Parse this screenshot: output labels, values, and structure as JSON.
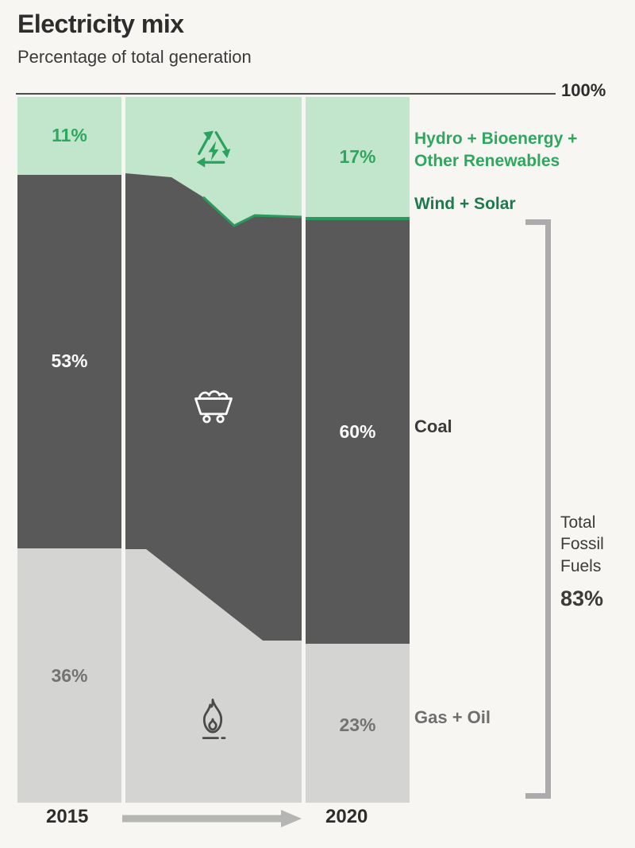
{
  "header": {
    "title": "Electricity mix",
    "subtitle": "Percentage of total generation"
  },
  "axis": {
    "top_label": "100%"
  },
  "values": {
    "y2015": {
      "renewables": "11%",
      "coal": "53%",
      "gas_oil": "36%"
    },
    "y2020": {
      "renewables": "17%",
      "coal": "60%",
      "gas_oil": "23%"
    }
  },
  "labels": {
    "renewables": "Hydro + Bioenergy + Other Renewables",
    "wind_solar": "Wind + Solar",
    "coal": "Coal",
    "gas_oil": "Gas + Oil",
    "total_fossil": "Total Fossil Fuels",
    "total_fossil_value": "83%"
  },
  "icons": {
    "renewables": "recycle-energy-icon",
    "coal": "coal-cart-icon",
    "gas_oil": "flame-icon"
  },
  "colors": {
    "background": "#f7f6f3",
    "renewables_fill": "#c2e6cc",
    "renewables_text": "#2fa75f",
    "wind_solar": "#2c9a5f",
    "coal_fill": "#59595a",
    "gas_fill": "#d4d4d2",
    "text_dark": "#2d2d2d",
    "text_gray": "#6e6e6e",
    "bracket": "#ababab"
  },
  "chart_data": {
    "type": "bar",
    "subtype": "stacked-flow-comparison",
    "title": "Electricity mix",
    "subtitle": "Percentage of total generation",
    "categories": [
      "2015",
      "2020"
    ],
    "series": [
      {
        "name": "Hydro + Bioenergy + Other Renewables",
        "values": [
          11,
          17
        ],
        "color": "#c2e6cc"
      },
      {
        "name": "Wind + Solar",
        "values": [
          0,
          0.5
        ],
        "color": "#2c9a5f"
      },
      {
        "name": "Coal",
        "values": [
          53,
          60
        ],
        "color": "#59595a"
      },
      {
        "name": "Gas + Oil",
        "values": [
          36,
          23
        ],
        "color": "#d4d4d2"
      }
    ],
    "ylim": [
      0,
      100
    ],
    "axis_top_label": "100%",
    "legend_position": "right",
    "annotations": [
      {
        "label": "Total Fossil Fuels",
        "value": 83,
        "display": "83%",
        "applies_to": "2020",
        "series": [
          "Coal",
          "Gas + Oil"
        ]
      }
    ]
  }
}
